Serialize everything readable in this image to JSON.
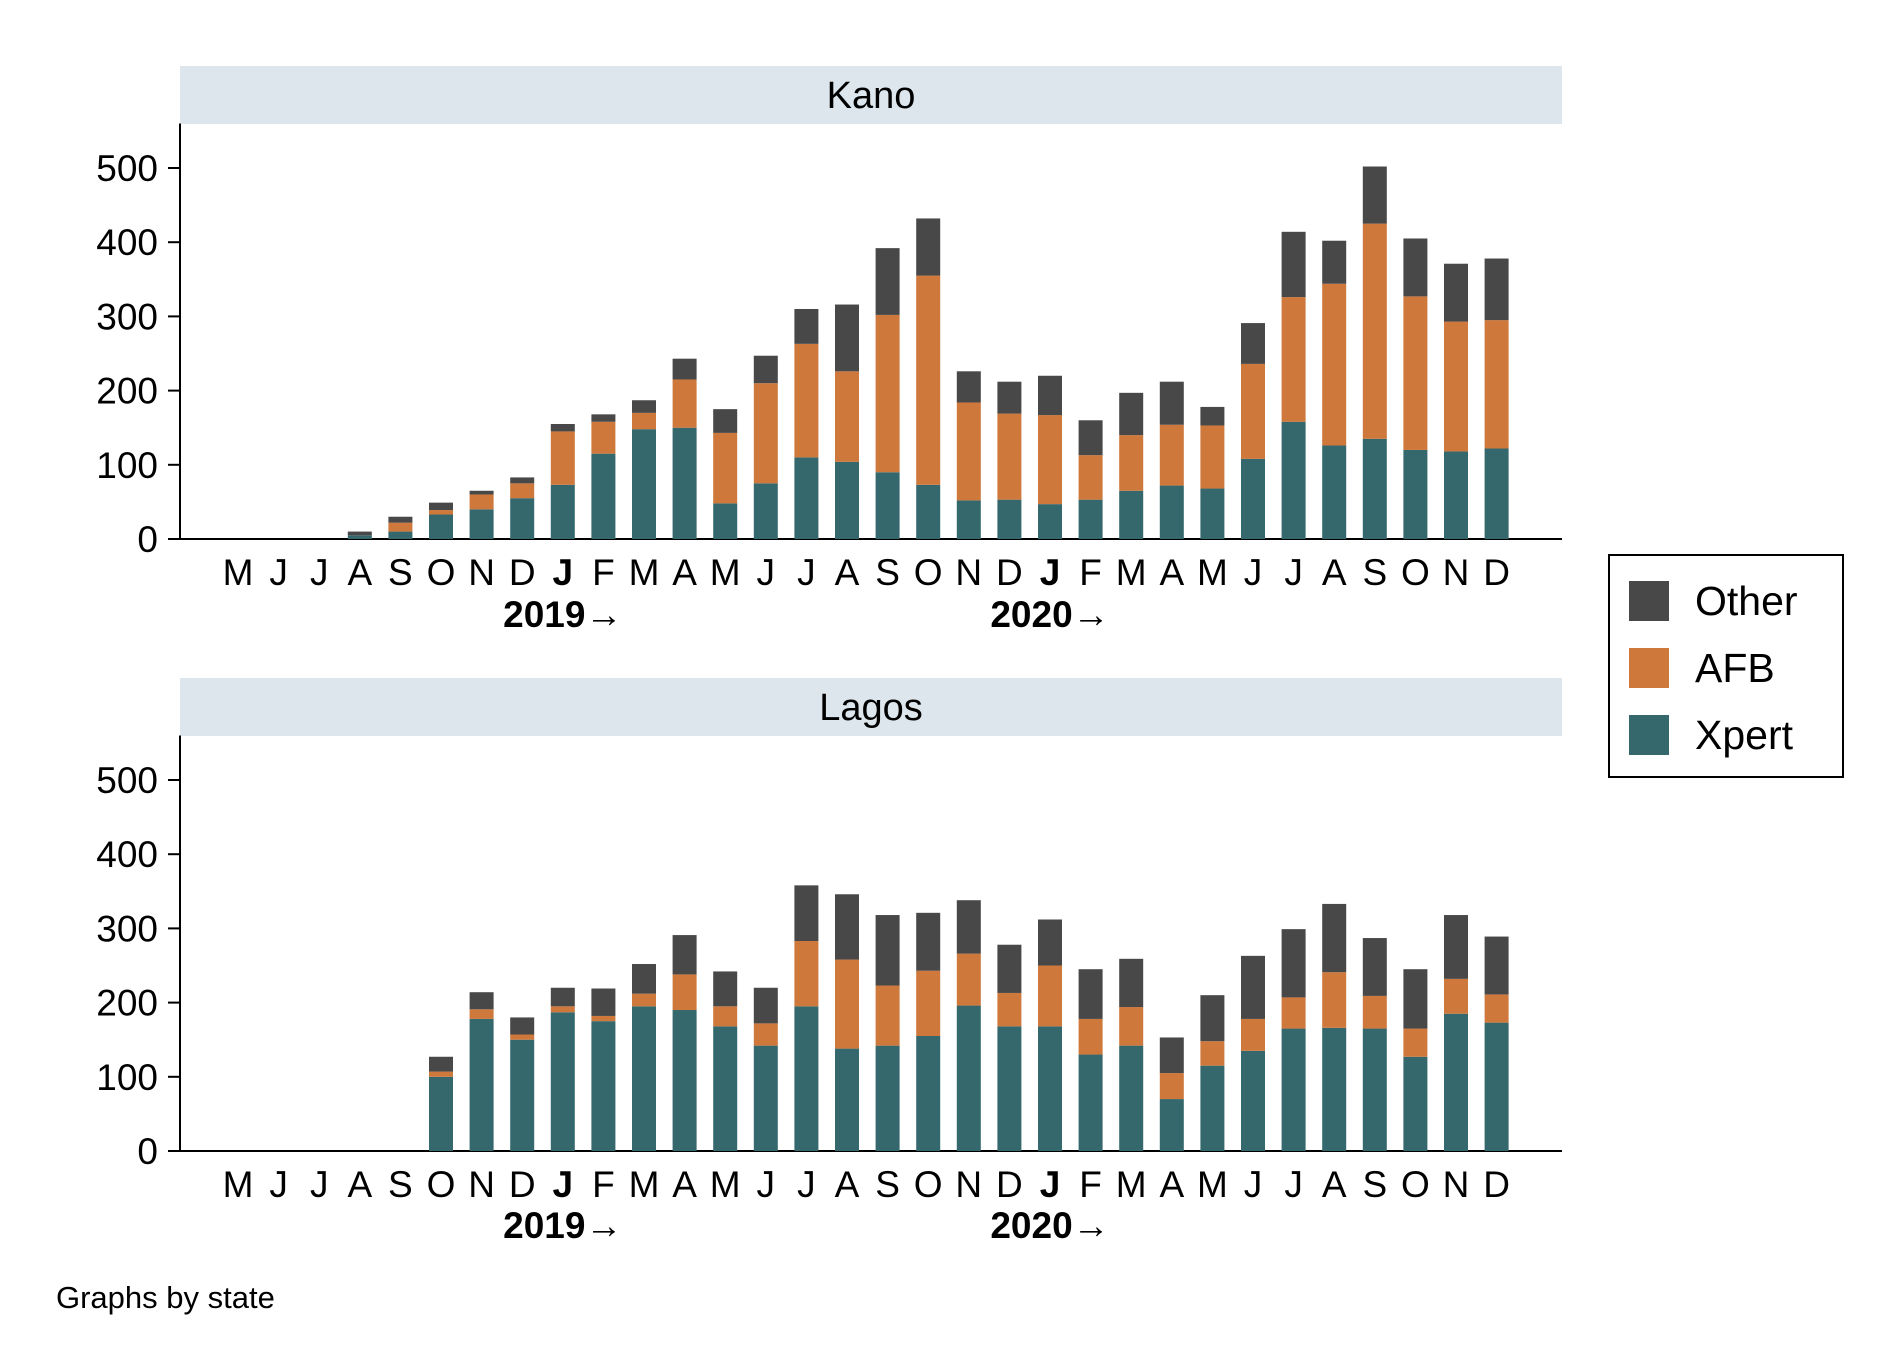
{
  "chart_data": {
    "type": "bar",
    "stacked": true,
    "footnote": "Graphs by state",
    "categories": [
      "M",
      "J",
      "J",
      "A",
      "S",
      "O",
      "N",
      "D",
      "J",
      "F",
      "M",
      "A",
      "M",
      "J",
      "J",
      "A",
      "S",
      "O",
      "N",
      "D",
      "J",
      "F",
      "M",
      "A",
      "M",
      "J",
      "J",
      "A",
      "S",
      "O",
      "N",
      "D"
    ],
    "bold_categories": [
      8,
      20
    ],
    "year_labels": [
      {
        "text": "2019→",
        "at_index": 8
      },
      {
        "text": "2020→",
        "at_index": 20
      }
    ],
    "ylim": [
      0,
      560
    ],
    "yticks": [
      0,
      100,
      200,
      300,
      400,
      500
    ],
    "grid": false,
    "legend": {
      "position": "right",
      "entries": [
        {
          "name": "Other",
          "color": "#484848"
        },
        {
          "name": "AFB",
          "color": "#cf783c"
        },
        {
          "name": "Xpert",
          "color": "#35686c"
        }
      ]
    },
    "panels": [
      {
        "title": "Kano",
        "series": [
          {
            "name": "Xpert",
            "color": "#35686c",
            "values": [
              0,
              0,
              0,
              5,
              10,
              33,
              40,
              55,
              73,
              115,
              148,
              150,
              48,
              75,
              110,
              104,
              90,
              73,
              52,
              53,
              47,
              53,
              65,
              72,
              68,
              108,
              158,
              126,
              135,
              120,
              118,
              122
            ]
          },
          {
            "name": "AFB",
            "color": "#cf783c",
            "values": [
              0,
              0,
              0,
              0,
              12,
              6,
              20,
              20,
              72,
              43,
              22,
              65,
              95,
              135,
              153,
              122,
              212,
              282,
              132,
              116,
              120,
              60,
              75,
              82,
              85,
              128,
              168,
              218,
              290,
              207,
              175,
              173
            ]
          },
          {
            "name": "Other",
            "color": "#484848",
            "values": [
              0,
              0,
              0,
              5,
              8,
              10,
              5,
              8,
              10,
              10,
              17,
              28,
              32,
              37,
              47,
              90,
              90,
              77,
              42,
              43,
              53,
              47,
              57,
              58,
              25,
              55,
              88,
              58,
              77,
              78,
              78,
              83
            ]
          }
        ]
      },
      {
        "title": "Lagos",
        "series": [
          {
            "name": "Xpert",
            "color": "#35686c",
            "values": [
              0,
              0,
              0,
              0,
              0,
              100,
              178,
              150,
              187,
              175,
              195,
              190,
              168,
              142,
              195,
              138,
              142,
              155,
              196,
              168,
              168,
              130,
              142,
              70,
              115,
              135,
              165,
              166,
              165,
              127,
              185,
              173
            ]
          },
          {
            "name": "AFB",
            "color": "#cf783c",
            "values": [
              0,
              0,
              0,
              0,
              0,
              7,
              13,
              7,
              8,
              7,
              17,
              48,
              27,
              30,
              88,
              120,
              81,
              88,
              70,
              45,
              82,
              48,
              52,
              35,
              33,
              43,
              42,
              75,
              44,
              38,
              47,
              38
            ]
          },
          {
            "name": "Other",
            "color": "#484848",
            "values": [
              0,
              0,
              0,
              0,
              0,
              20,
              23,
              23,
              25,
              37,
              40,
              53,
              47,
              48,
              75,
              88,
              95,
              78,
              72,
              65,
              62,
              67,
              65,
              48,
              62,
              85,
              92,
              92,
              78,
              80,
              86,
              78
            ]
          }
        ]
      }
    ]
  }
}
